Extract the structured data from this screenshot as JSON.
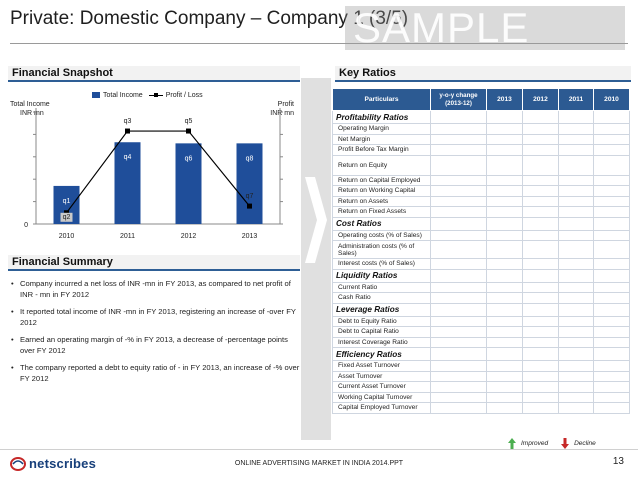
{
  "header": {
    "title": "Private: Domestic Company – Company 1 (3/5)",
    "watermark": "SAMPLE"
  },
  "snapshot": {
    "heading": "Financial Snapshot",
    "y_left_label": "Total Income\nINR mn",
    "y_right_label": "Profit\nINR mn",
    "zero_label": "0"
  },
  "chart_data": {
    "type": "bar",
    "title": "",
    "categories": [
      "2010",
      "2011",
      "2012",
      "2013"
    ],
    "series": [
      {
        "name": "Total Income",
        "kind": "bar",
        "values": [
          0.34,
          0.73,
          0.72,
          0.72
        ],
        "labels": [
          "q1",
          "q4",
          "q6",
          "q8"
        ]
      },
      {
        "name": "Profit / Loss",
        "kind": "line",
        "values": [
          0.1,
          0.83,
          0.83,
          0.16
        ],
        "labels": [
          "q2",
          "q3",
          "q5",
          "q7"
        ]
      }
    ],
    "xlabel": "",
    "ylabel": "Total Income INR mn",
    "y2label": "Profit INR mn",
    "ylim": [
      0,
      1
    ],
    "grid": false,
    "legend": "top"
  },
  "summary": {
    "heading": "Financial Summary",
    "bullets": [
      "Company incurred a net loss of INR -mn in FY 2013, as compared to net profit of INR - mn in FY 2012",
      "It reported total income of INR -mn in FY 2013, registering an increase of -over FY 2012",
      "Earned an operating margin of -% in FY 2013, a decrease of -percentage points over FY 2012",
      "The company reported a debt to equity ratio of - in FY 2013, an increase of -% over FY 2012"
    ]
  },
  "key_ratios": {
    "heading": "Key Ratios",
    "columns": [
      "Particulars",
      "y-o-y change (2013-12)",
      "2013",
      "2012",
      "2011",
      "2010"
    ],
    "rows": [
      {
        "type": "cat",
        "label": "Profitability Ratios"
      },
      {
        "type": "item",
        "label": "Operating Margin"
      },
      {
        "type": "item",
        "label": "Net Margin"
      },
      {
        "type": "item",
        "label": "Profit Before Tax Margin"
      },
      {
        "type": "tall",
        "label": "Return on Equity"
      },
      {
        "type": "item",
        "label": "Return on Capital Employed"
      },
      {
        "type": "item",
        "label": "Return on Working Capital"
      },
      {
        "type": "item",
        "label": "Return on Assets"
      },
      {
        "type": "item",
        "label": "Return on Fixed Assets"
      },
      {
        "type": "cat",
        "label": "Cost Ratios"
      },
      {
        "type": "item",
        "label": "Operating costs (% of Sales)"
      },
      {
        "type": "vtall",
        "label": "Administration costs (% of Sales)"
      },
      {
        "type": "item",
        "label": "Interest costs (% of Sales)"
      },
      {
        "type": "cat",
        "label": "Liquidity Ratios"
      },
      {
        "type": "item",
        "label": "Current Ratio"
      },
      {
        "type": "item",
        "label": "Cash Ratio"
      },
      {
        "type": "cat",
        "label": "Leverage Ratios"
      },
      {
        "type": "item",
        "label": "Debt to Equity Ratio"
      },
      {
        "type": "item",
        "label": "Debt to Capital Ratio"
      },
      {
        "type": "item",
        "label": "Interest Coverage Ratio"
      },
      {
        "type": "cat",
        "label": "Efficiency Ratios"
      },
      {
        "type": "item",
        "label": "Fixed Asset Turnover"
      },
      {
        "type": "item",
        "label": "Asset Turnover"
      },
      {
        "type": "item",
        "label": "Current Asset Turnover"
      },
      {
        "type": "item",
        "label": "Working Capital Turnover"
      },
      {
        "type": "item",
        "label": "Capital Employed Turnover"
      }
    ],
    "legend_improved": "Improved",
    "legend_decline": "Decline"
  },
  "footer": {
    "logo_text": "netscribes",
    "center_text": "ONLINE ADVERTISING MARKET IN INDIA 2014.PPT",
    "page_number": "13"
  },
  "colors": {
    "bar": "#1f4e9a",
    "header_blue": "#2c5a92",
    "improved": "#4caf50",
    "decline": "#c62828"
  }
}
